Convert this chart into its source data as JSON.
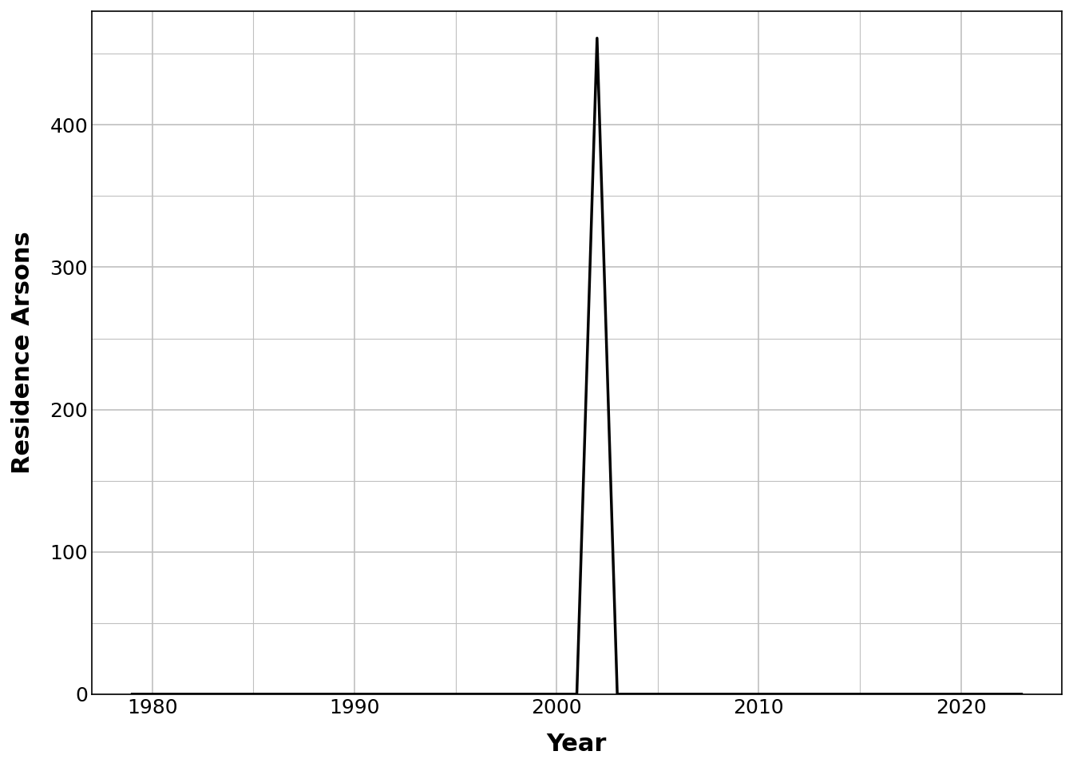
{
  "years": [
    1979,
    1980,
    1981,
    1982,
    1983,
    1984,
    1985,
    1986,
    1987,
    1988,
    1989,
    1990,
    1991,
    1992,
    1993,
    1994,
    1995,
    1996,
    1997,
    1998,
    1999,
    2000,
    2001,
    2002,
    2003,
    2004,
    2005,
    2006,
    2007,
    2008,
    2009,
    2010,
    2011,
    2012,
    2013,
    2014,
    2015,
    2016,
    2017,
    2018,
    2019,
    2020,
    2021,
    2022,
    2023
  ],
  "values": [
    0,
    0,
    0,
    0,
    0,
    0,
    0,
    0,
    0,
    0,
    0,
    0,
    0,
    0,
    0,
    0,
    0,
    0,
    0,
    0,
    0,
    0,
    0,
    461,
    0,
    0,
    0,
    0,
    0,
    0,
    0,
    0,
    0,
    0,
    0,
    0,
    0,
    0,
    0,
    0,
    0,
    0,
    0,
    0,
    0
  ],
  "line_color": "#000000",
  "line_width": 2.5,
  "background_color": "#ffffff",
  "grid_color": "#c0c0c0",
  "xlabel": "Year",
  "ylabel": "Residence Arsons",
  "xlabel_fontsize": 22,
  "ylabel_fontsize": 22,
  "tick_fontsize": 18,
  "xlabel_fontweight": "bold",
  "ylabel_fontweight": "bold",
  "xlim": [
    1977,
    2025
  ],
  "ylim": [
    0,
    480
  ],
  "xticks": [
    1980,
    1990,
    2000,
    2010,
    2020
  ],
  "yticks": [
    0,
    100,
    200,
    300,
    400
  ]
}
